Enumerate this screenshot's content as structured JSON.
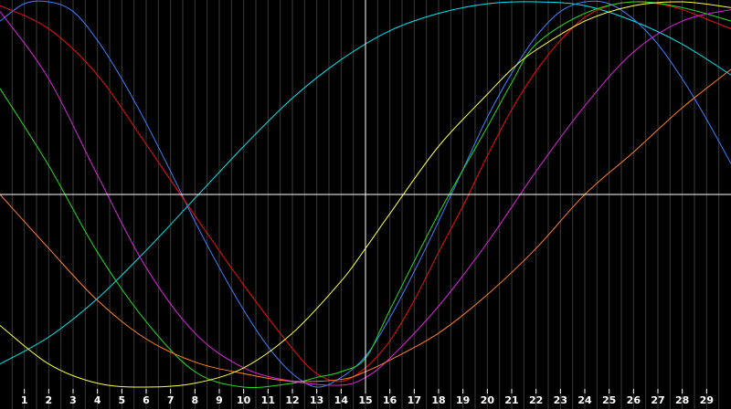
{
  "chart_data": {
    "type": "line",
    "x_ticks": [
      "1",
      "2",
      "3",
      "4",
      "5",
      "6",
      "7",
      "8",
      "9",
      "10",
      "11",
      "12",
      "13",
      "14",
      "15",
      "16",
      "17",
      "18",
      "19",
      "20",
      "21",
      "22",
      "23",
      "24",
      "25",
      "26",
      "27",
      "28",
      "29"
    ],
    "xlim": [
      0,
      30
    ],
    "ylim": [
      -1,
      1
    ],
    "grid": true,
    "crosshair": {
      "x": 15,
      "y": 0
    },
    "colors": {
      "background": "#000000",
      "grid": "#3a3a3a",
      "axis": "#ffffff",
      "tick_label": "#ffffff"
    },
    "series": [
      {
        "color": "#00e5ee",
        "points": [
          [
            0,
            -0.88
          ],
          [
            2,
            -0.74
          ],
          [
            4,
            -0.54
          ],
          [
            6,
            -0.29
          ],
          [
            8,
            -0.02
          ],
          [
            10,
            0.25
          ],
          [
            12,
            0.5
          ],
          [
            14,
            0.7
          ],
          [
            16,
            0.85
          ],
          [
            18,
            0.94
          ],
          [
            20,
            0.99
          ],
          [
            22,
            1.0
          ],
          [
            24,
            0.98
          ],
          [
            26,
            0.9
          ],
          [
            28,
            0.78
          ],
          [
            30,
            0.62
          ]
        ]
      },
      {
        "color": "#3f7fff",
        "points": [
          [
            0,
            0.9
          ],
          [
            1,
            0.99
          ],
          [
            2,
            1.0
          ],
          [
            3,
            0.95
          ],
          [
            4,
            0.8
          ],
          [
            5,
            0.6
          ],
          [
            6,
            0.37
          ],
          [
            7,
            0.12
          ],
          [
            8,
            -0.14
          ],
          [
            9,
            -0.38
          ],
          [
            10,
            -0.6
          ],
          [
            11,
            -0.79
          ],
          [
            12,
            -0.93
          ],
          [
            13,
            -1.0
          ],
          [
            14,
            -0.95
          ],
          [
            15,
            -0.84
          ],
          [
            16,
            -0.64
          ],
          [
            17,
            -0.4
          ],
          [
            18,
            -0.14
          ],
          [
            19,
            0.13
          ],
          [
            20,
            0.4
          ],
          [
            21,
            0.63
          ],
          [
            22,
            0.82
          ],
          [
            23,
            0.95
          ],
          [
            24,
            1.0
          ],
          [
            25,
            0.99
          ],
          [
            26,
            0.91
          ],
          [
            27,
            0.78
          ],
          [
            28,
            0.6
          ],
          [
            29,
            0.39
          ],
          [
            30,
            0.16
          ]
        ]
      },
      {
        "color": "#ee1111",
        "points": [
          [
            0,
            0.98
          ],
          [
            2,
            0.86
          ],
          [
            4,
            0.62
          ],
          [
            6,
            0.26
          ],
          [
            8,
            -0.11
          ],
          [
            10,
            -0.47
          ],
          [
            12,
            -0.8
          ],
          [
            13,
            -0.93
          ],
          [
            14,
            -0.97
          ],
          [
            15,
            -0.9
          ],
          [
            16,
            -0.76
          ],
          [
            17,
            -0.55
          ],
          [
            18,
            -0.3
          ],
          [
            19,
            -0.06
          ],
          [
            20,
            0.2
          ],
          [
            21,
            0.44
          ],
          [
            22,
            0.64
          ],
          [
            23,
            0.8
          ],
          [
            24,
            0.92
          ],
          [
            25,
            0.98
          ],
          [
            26,
            1.0
          ],
          [
            27,
            0.99
          ],
          [
            28,
            0.96
          ],
          [
            29,
            0.91
          ],
          [
            30,
            0.86
          ]
        ]
      },
      {
        "color": "#22dd22",
        "points": [
          [
            0,
            0.55
          ],
          [
            2,
            0.15
          ],
          [
            4,
            -0.3
          ],
          [
            6,
            -0.66
          ],
          [
            8,
            -0.92
          ],
          [
            10,
            -1.0
          ],
          [
            12,
            -0.98
          ],
          [
            13,
            -0.95
          ],
          [
            14,
            -0.92
          ],
          [
            15,
            -0.85
          ],
          [
            16,
            -0.6
          ],
          [
            18,
            -0.1
          ],
          [
            20,
            0.35
          ],
          [
            21,
            0.58
          ],
          [
            22,
            0.78
          ],
          [
            24,
            0.94
          ],
          [
            26,
            1.0
          ],
          [
            28,
            0.97
          ],
          [
            30,
            0.9
          ]
        ]
      },
      {
        "color": "#dd22dd",
        "points": [
          [
            0,
            0.95
          ],
          [
            2,
            0.6
          ],
          [
            4,
            0.1
          ],
          [
            6,
            -0.38
          ],
          [
            8,
            -0.72
          ],
          [
            10,
            -0.9
          ],
          [
            12,
            -0.97
          ],
          [
            14,
            -0.99
          ],
          [
            15,
            -0.95
          ],
          [
            16,
            -0.85
          ],
          [
            18,
            -0.58
          ],
          [
            20,
            -0.25
          ],
          [
            22,
            0.12
          ],
          [
            24,
            0.46
          ],
          [
            26,
            0.74
          ],
          [
            28,
            0.9
          ],
          [
            30,
            0.96
          ]
        ]
      },
      {
        "color": "#ff7f27",
        "points": [
          [
            0,
            0.0
          ],
          [
            2,
            -0.28
          ],
          [
            4,
            -0.55
          ],
          [
            6,
            -0.75
          ],
          [
            8,
            -0.87
          ],
          [
            10,
            -0.93
          ],
          [
            12,
            -0.97
          ],
          [
            14,
            -0.96
          ],
          [
            15,
            -0.92
          ],
          [
            16,
            -0.86
          ],
          [
            18,
            -0.72
          ],
          [
            20,
            -0.52
          ],
          [
            22,
            -0.28
          ],
          [
            24,
            0.0
          ],
          [
            26,
            0.22
          ],
          [
            28,
            0.45
          ],
          [
            30,
            0.65
          ]
        ]
      },
      {
        "color": "#ffff44",
        "points": [
          [
            0,
            -0.68
          ],
          [
            2,
            -0.88
          ],
          [
            4,
            -0.98
          ],
          [
            6,
            -1.0
          ],
          [
            8,
            -0.98
          ],
          [
            10,
            -0.9
          ],
          [
            12,
            -0.72
          ],
          [
            14,
            -0.45
          ],
          [
            15,
            -0.28
          ],
          [
            16,
            -0.1
          ],
          [
            18,
            0.25
          ],
          [
            20,
            0.52
          ],
          [
            21,
            0.65
          ],
          [
            22,
            0.75
          ],
          [
            24,
            0.9
          ],
          [
            26,
            0.98
          ],
          [
            28,
            1.0
          ],
          [
            30,
            0.97
          ]
        ]
      }
    ]
  }
}
